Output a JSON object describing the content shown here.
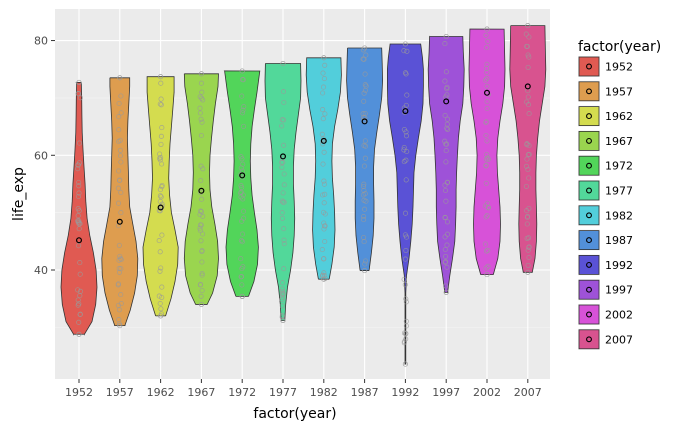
{
  "chart_data": {
    "type": "violin",
    "title": "",
    "xlabel": "factor(year)",
    "ylabel": "life_exp",
    "categories": [
      "1952",
      "1957",
      "1962",
      "1967",
      "1972",
      "1977",
      "1982",
      "1987",
      "1992",
      "1997",
      "2002",
      "2007"
    ],
    "y_ticks": [
      40,
      60,
      80
    ],
    "ylim": [
      21,
      85.5
    ],
    "grid": true,
    "legend": {
      "title": "factor(year)",
      "position": "right"
    },
    "colors": [
      "#E05A52",
      "#DE9D4F",
      "#D4DC4F",
      "#9AD54F",
      "#52D55A",
      "#52D89A",
      "#52CEDB",
      "#5290D9",
      "#5A52D6",
      "#9E52D8",
      "#D752D8",
      "#D8538F"
    ],
    "series": [
      {
        "year": "1952",
        "min": 28.8,
        "max": 72.7,
        "mean": 45.2,
        "profile": [
          [
            28.8,
            0.3
          ],
          [
            31,
            0.72
          ],
          [
            34,
            0.93
          ],
          [
            37,
            1.0
          ],
          [
            40,
            0.95
          ],
          [
            43,
            0.8
          ],
          [
            46,
            0.6
          ],
          [
            49,
            0.45
          ],
          [
            52,
            0.38
          ],
          [
            55,
            0.34
          ],
          [
            58,
            0.28
          ],
          [
            61,
            0.22
          ],
          [
            64,
            0.18
          ],
          [
            67,
            0.16
          ],
          [
            70,
            0.15
          ],
          [
            72.7,
            0.13
          ]
        ]
      },
      {
        "year": "1957",
        "min": 30.3,
        "max": 73.5,
        "mean": 48.4,
        "profile": [
          [
            30.3,
            0.28
          ],
          [
            33,
            0.58
          ],
          [
            36,
            0.82
          ],
          [
            39,
            0.97
          ],
          [
            42,
            1.0
          ],
          [
            45,
            0.9
          ],
          [
            48,
            0.72
          ],
          [
            51,
            0.55
          ],
          [
            54,
            0.5
          ],
          [
            57,
            0.48
          ],
          [
            60,
            0.45
          ],
          [
            63,
            0.42
          ],
          [
            66,
            0.45
          ],
          [
            69,
            0.5
          ],
          [
            72,
            0.55
          ],
          [
            73.5,
            0.55
          ]
        ]
      },
      {
        "year": "1962",
        "min": 32.0,
        "max": 73.7,
        "mean": 50.9,
        "profile": [
          [
            32,
            0.28
          ],
          [
            35,
            0.58
          ],
          [
            38,
            0.8
          ],
          [
            41,
            0.95
          ],
          [
            44,
            0.98
          ],
          [
            47,
            0.8
          ],
          [
            50,
            0.6
          ],
          [
            53,
            0.5
          ],
          [
            56,
            0.45
          ],
          [
            59,
            0.48
          ],
          [
            62,
            0.52
          ],
          [
            65,
            0.6
          ],
          [
            68,
            0.68
          ],
          [
            71,
            0.75
          ],
          [
            73.7,
            0.75
          ]
        ]
      },
      {
        "year": "1967",
        "min": 34.0,
        "max": 74.2,
        "mean": 53.8,
        "profile": [
          [
            34,
            0.32
          ],
          [
            36,
            0.62
          ],
          [
            39,
            0.88
          ],
          [
            42,
            0.95
          ],
          [
            45,
            0.9
          ],
          [
            48,
            0.75
          ],
          [
            51,
            0.58
          ],
          [
            54,
            0.48
          ],
          [
            57,
            0.45
          ],
          [
            60,
            0.48
          ],
          [
            63,
            0.56
          ],
          [
            66,
            0.66
          ],
          [
            69,
            0.78
          ],
          [
            72,
            0.92
          ],
          [
            74.2,
            0.95
          ]
        ]
      },
      {
        "year": "1972",
        "min": 35.4,
        "max": 74.7,
        "mean": 56.5,
        "profile": [
          [
            35.4,
            0.35
          ],
          [
            38,
            0.65
          ],
          [
            41,
            0.85
          ],
          [
            44,
            0.9
          ],
          [
            47,
            0.82
          ],
          [
            50,
            0.68
          ],
          [
            53,
            0.55
          ],
          [
            56,
            0.48
          ],
          [
            59,
            0.45
          ],
          [
            62,
            0.48
          ],
          [
            65,
            0.55
          ],
          [
            68,
            0.68
          ],
          [
            71,
            0.82
          ],
          [
            74.7,
            0.98
          ]
        ]
      },
      {
        "year": "1977",
        "min": 31.2,
        "max": 76.0,
        "mean": 59.8,
        "profile": [
          [
            31.2,
            0.1
          ],
          [
            34,
            0.15
          ],
          [
            37,
            0.25
          ],
          [
            40,
            0.42
          ],
          [
            43,
            0.55
          ],
          [
            46,
            0.62
          ],
          [
            49,
            0.65
          ],
          [
            52,
            0.62
          ],
          [
            55,
            0.58
          ],
          [
            58,
            0.58
          ],
          [
            61,
            0.62
          ],
          [
            64,
            0.72
          ],
          [
            67,
            0.85
          ],
          [
            70,
            0.98
          ],
          [
            73,
            1.0
          ],
          [
            76,
            0.98
          ]
        ]
      },
      {
        "year": "1982",
        "min": 38.4,
        "max": 77.0,
        "mean": 62.5,
        "profile": [
          [
            38.4,
            0.3
          ],
          [
            41,
            0.45
          ],
          [
            44,
            0.58
          ],
          [
            47,
            0.62
          ],
          [
            50,
            0.6
          ],
          [
            53,
            0.55
          ],
          [
            56,
            0.48
          ],
          [
            59,
            0.45
          ],
          [
            62,
            0.48
          ],
          [
            65,
            0.6
          ],
          [
            68,
            0.78
          ],
          [
            71,
            0.92
          ],
          [
            74,
            0.98
          ],
          [
            77,
            0.95
          ]
        ]
      },
      {
        "year": "1987",
        "min": 39.9,
        "max": 78.7,
        "mean": 65.9,
        "profile": [
          [
            39.9,
            0.25
          ],
          [
            43,
            0.38
          ],
          [
            46,
            0.48
          ],
          [
            49,
            0.52
          ],
          [
            52,
            0.52
          ],
          [
            55,
            0.5
          ],
          [
            58,
            0.5
          ],
          [
            61,
            0.55
          ],
          [
            64,
            0.68
          ],
          [
            67,
            0.82
          ],
          [
            70,
            0.95
          ],
          [
            73,
            1.0
          ],
          [
            76,
            0.98
          ],
          [
            78.7,
            0.95
          ]
        ]
      },
      {
        "year": "1992",
        "min": 23.6,
        "max": 79.4,
        "mean": 67.7,
        "profile": [
          [
            23.6,
            0.02
          ],
          [
            30,
            0.02
          ],
          [
            36,
            0.02
          ],
          [
            39,
            0.06
          ],
          [
            42,
            0.2
          ],
          [
            45,
            0.3
          ],
          [
            48,
            0.38
          ],
          [
            51,
            0.42
          ],
          [
            54,
            0.45
          ],
          [
            57,
            0.48
          ],
          [
            60,
            0.58
          ],
          [
            63,
            0.72
          ],
          [
            66,
            0.88
          ],
          [
            69,
            0.98
          ],
          [
            72,
            1.0
          ],
          [
            75,
            1.0
          ],
          [
            77,
            0.95
          ],
          [
            79.4,
            0.85
          ]
        ]
      },
      {
        "year": "1997",
        "min": 36.1,
        "max": 80.7,
        "mean": 69.4,
        "profile": [
          [
            36.1,
            0.08
          ],
          [
            39,
            0.2
          ],
          [
            42,
            0.35
          ],
          [
            45,
            0.48
          ],
          [
            48,
            0.52
          ],
          [
            51,
            0.55
          ],
          [
            54,
            0.55
          ],
          [
            57,
            0.58
          ],
          [
            60,
            0.62
          ],
          [
            63,
            0.68
          ],
          [
            66,
            0.78
          ],
          [
            69,
            0.92
          ],
          [
            72,
            0.98
          ],
          [
            75,
            1.0
          ],
          [
            78,
            0.95
          ],
          [
            80.7,
            0.92
          ]
        ]
      },
      {
        "year": "2002",
        "min": 39.2,
        "max": 82.0,
        "mean": 70.9,
        "profile": [
          [
            39.2,
            0.35
          ],
          [
            42,
            0.6
          ],
          [
            45,
            0.72
          ],
          [
            48,
            0.75
          ],
          [
            51,
            0.72
          ],
          [
            54,
            0.65
          ],
          [
            57,
            0.58
          ],
          [
            60,
            0.55
          ],
          [
            63,
            0.6
          ],
          [
            66,
            0.72
          ],
          [
            69,
            0.88
          ],
          [
            72,
            0.98
          ],
          [
            75,
            1.0
          ],
          [
            78,
            0.98
          ],
          [
            82,
            0.95
          ]
        ]
      },
      {
        "year": "2007",
        "min": 39.6,
        "max": 82.6,
        "mean": 72.0,
        "profile": [
          [
            39.6,
            0.25
          ],
          [
            42,
            0.4
          ],
          [
            45,
            0.48
          ],
          [
            48,
            0.5
          ],
          [
            51,
            0.48
          ],
          [
            54,
            0.45
          ],
          [
            57,
            0.45
          ],
          [
            60,
            0.48
          ],
          [
            63,
            0.55
          ],
          [
            66,
            0.65
          ],
          [
            69,
            0.8
          ],
          [
            72,
            0.95
          ],
          [
            75,
            1.0
          ],
          [
            78,
            0.98
          ],
          [
            82.6,
            0.95
          ]
        ]
      }
    ]
  }
}
